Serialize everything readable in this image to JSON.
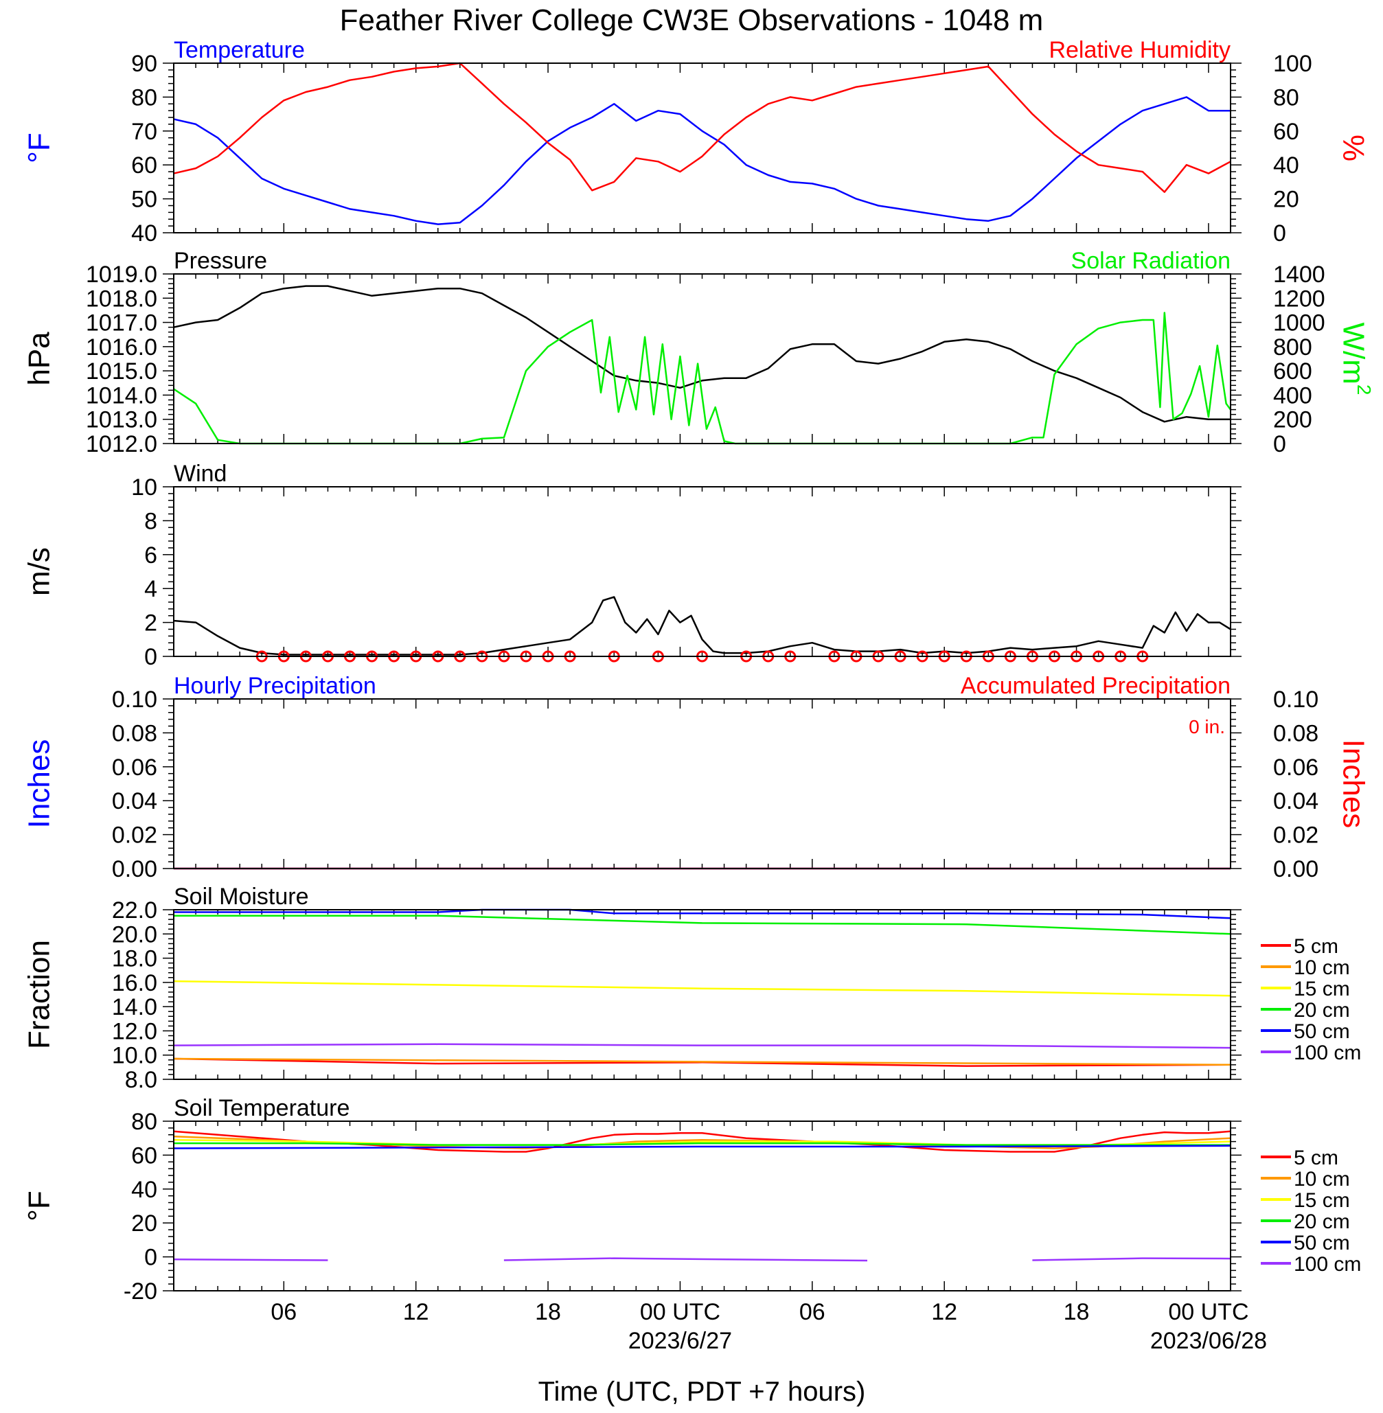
{
  "page": {
    "title": "Feather River College CW3E Observations - 1048 m",
    "xlabel": "Time (UTC, PDT +7 hours)",
    "x_ticks": [
      {
        "hour": 6,
        "label": "06",
        "date": ""
      },
      {
        "hour": 12,
        "label": "12",
        "date": ""
      },
      {
        "hour": 18,
        "label": "18",
        "date": ""
      },
      {
        "hour": 24,
        "label": "00 UTC",
        "date": "2023/6/27"
      },
      {
        "hour": 30,
        "label": "06",
        "date": ""
      },
      {
        "hour": 36,
        "label": "12",
        "date": ""
      },
      {
        "hour": 42,
        "label": "18",
        "date": ""
      },
      {
        "hour": 48,
        "label": "00 UTC",
        "date": "2023/06/28"
      }
    ],
    "x_range_hours": [
      1,
      49
    ]
  },
  "colors": {
    "temperature": "#0000ff",
    "humidity": "#ff0000",
    "pressure": "#000000",
    "solar": "#00ee00",
    "wind_speed": "#000000",
    "wind_barb": "#ff0000",
    "precip_hourly": "#0000ff",
    "precip_accum": "#ff0000",
    "depth_5": "#ff0000",
    "depth_10": "#ff9900",
    "depth_15": "#ffff00",
    "depth_20": "#00ee00",
    "depth_50": "#0000ff",
    "depth_100": "#9933ff"
  },
  "chart_data": [
    {
      "type": "line",
      "title_left": "Temperature",
      "title_right": "Relative Humidity",
      "ylabel_left": "°F",
      "ylabel_right": "%",
      "ylim_left": [
        40,
        90
      ],
      "ylim_right": [
        0,
        100
      ],
      "yticks_left": [
        "40",
        "50",
        "60",
        "70",
        "80",
        "90"
      ],
      "yticks_right": [
        "0",
        "20",
        "40",
        "60",
        "80",
        "100"
      ],
      "series": [
        {
          "name": "Temperature",
          "axis": "left",
          "x": [
            1,
            2,
            3,
            4,
            5,
            6,
            7,
            8,
            9,
            10,
            11,
            12,
            13,
            14,
            15,
            16,
            17,
            18,
            19,
            20,
            21,
            22,
            23,
            24,
            25,
            26,
            27,
            28,
            29,
            30,
            31,
            32,
            33,
            34,
            35,
            36,
            37,
            38,
            39,
            40,
            41,
            42,
            43,
            44,
            45,
            46,
            47,
            48,
            49
          ],
          "values": [
            73.5,
            72,
            68,
            62,
            56,
            53,
            51,
            49,
            47,
            46,
            45,
            43.5,
            42.5,
            43,
            48,
            54,
            61,
            67,
            71,
            74,
            78,
            73,
            76,
            75,
            70,
            66,
            60,
            57,
            55,
            54.5,
            53,
            50,
            48,
            47,
            46,
            45,
            44,
            43.5,
            45,
            50,
            56,
            62,
            67,
            72,
            76,
            78,
            80,
            76,
            76
          ]
        },
        {
          "name": "Relative Humidity",
          "axis": "right",
          "x": [
            1,
            2,
            3,
            4,
            5,
            6,
            7,
            8,
            9,
            10,
            11,
            12,
            13,
            14,
            15,
            16,
            17,
            18,
            19,
            20,
            21,
            22,
            23,
            24,
            25,
            26,
            27,
            28,
            29,
            30,
            31,
            32,
            33,
            34,
            35,
            36,
            37,
            38,
            39,
            40,
            41,
            42,
            43,
            44,
            45,
            46,
            47,
            48,
            49
          ],
          "values": [
            35,
            38,
            45,
            56,
            68,
            78,
            83,
            86,
            90,
            92,
            95,
            97,
            98,
            100,
            88,
            76,
            65,
            53,
            43,
            25,
            30,
            44,
            42,
            36,
            45,
            58,
            68,
            76,
            80,
            78,
            82,
            86,
            88,
            90,
            92,
            94,
            96,
            98,
            84,
            70,
            58,
            48,
            40,
            38,
            36,
            24,
            40,
            35,
            42
          ]
        }
      ]
    },
    {
      "type": "line",
      "title_left": "Pressure",
      "title_right": "Solar Radiation",
      "ylabel_left": "hPa",
      "ylabel_right": "W/m",
      "ylabel_right_sup": "2",
      "ylim_left": [
        1012,
        1019
      ],
      "ylim_right": [
        0,
        1400
      ],
      "yticks_left": [
        "1012.0",
        "1013.0",
        "1014.0",
        "1015.0",
        "1016.0",
        "1017.0",
        "1018.0",
        "1019.0"
      ],
      "yticks_right": [
        "0",
        "200",
        "400",
        "600",
        "800",
        "1000",
        "1200",
        "1400"
      ],
      "series": [
        {
          "name": "Pressure",
          "axis": "left",
          "x": [
            1,
            2,
            3,
            4,
            5,
            6,
            7,
            8,
            9,
            10,
            11,
            12,
            13,
            14,
            15,
            16,
            17,
            18,
            19,
            20,
            21,
            22,
            23,
            24,
            25,
            26,
            27,
            28,
            29,
            30,
            31,
            32,
            33,
            34,
            35,
            36,
            37,
            38,
            39,
            40,
            41,
            42,
            43,
            44,
            45,
            46,
            47,
            48,
            49
          ],
          "values": [
            1016.8,
            1017,
            1017.1,
            1017.6,
            1018.2,
            1018.4,
            1018.5,
            1018.5,
            1018.3,
            1018.1,
            1018.2,
            1018.3,
            1018.4,
            1018.4,
            1018.2,
            1017.7,
            1017.2,
            1016.6,
            1016,
            1015.4,
            1014.8,
            1014.6,
            1014.5,
            1014.3,
            1014.6,
            1014.7,
            1014.7,
            1015.1,
            1015.9,
            1016.1,
            1016.1,
            1015.4,
            1015.3,
            1015.5,
            1015.8,
            1016.2,
            1016.3,
            1016.2,
            1015.9,
            1015.4,
            1015,
            1014.7,
            1014.3,
            1013.9,
            1013.3,
            1012.9,
            1013.1,
            1013,
            1013
          ]
        },
        {
          "name": "Solar Radiation",
          "axis": "right",
          "x": [
            1,
            2,
            3,
            4,
            5,
            6,
            7,
            8,
            9,
            10,
            11,
            12,
            13,
            14,
            15,
            16,
            17,
            18,
            19,
            20,
            20.4,
            20.8,
            21.2,
            21.6,
            22,
            22.4,
            22.8,
            23.2,
            23.6,
            24,
            24.4,
            24.8,
            25.2,
            25.6,
            26,
            26.5,
            27,
            28,
            30,
            32,
            34,
            36,
            38,
            39,
            40,
            40.5,
            41,
            42,
            43,
            44,
            45,
            45.5,
            45.8,
            46,
            46.4,
            46.8,
            47.2,
            47.6,
            48,
            48.4,
            48.8,
            49
          ],
          "values": [
            450,
            330,
            30,
            0,
            0,
            0,
            0,
            0,
            0,
            0,
            0,
            0,
            0,
            0,
            40,
            50,
            600,
            800,
            920,
            1020,
            420,
            880,
            260,
            560,
            280,
            880,
            240,
            820,
            200,
            720,
            150,
            660,
            120,
            300,
            20,
            0,
            0,
            0,
            0,
            0,
            0,
            0,
            0,
            0,
            50,
            50,
            570,
            820,
            950,
            1000,
            1020,
            1020,
            300,
            1080,
            200,
            250,
            410,
            640,
            220,
            810,
            330,
            280
          ]
        }
      ]
    },
    {
      "type": "line",
      "title_left": "Wind",
      "ylabel_left": "m/s",
      "ylim_left": [
        0,
        10
      ],
      "yticks_left": [
        "0",
        "2",
        "4",
        "6",
        "8",
        "10"
      ],
      "series": [
        {
          "name": "Wind",
          "axis": "left",
          "x": [
            1,
            2,
            3,
            4,
            5,
            6,
            7,
            8,
            9,
            10,
            11,
            12,
            13,
            14,
            15,
            16,
            17,
            18,
            19,
            20,
            20.5,
            21,
            21.5,
            22,
            22.5,
            23,
            23.5,
            24,
            24.5,
            25,
            25.5,
            26,
            27,
            28,
            29,
            30,
            31,
            32,
            33,
            34,
            35,
            36,
            37,
            38,
            39,
            40,
            41,
            42,
            43,
            44,
            45,
            45.5,
            46,
            46.5,
            47,
            47.5,
            48,
            48.5,
            49
          ],
          "values": [
            2.1,
            2,
            1.2,
            0.5,
            0.2,
            0.1,
            0.1,
            0.1,
            0.1,
            0.1,
            0.1,
            0.1,
            0.1,
            0.1,
            0.2,
            0.4,
            0.6,
            0.8,
            1.0,
            2.0,
            3.3,
            3.5,
            2.0,
            1.4,
            2.2,
            1.3,
            2.7,
            2.0,
            2.4,
            1.0,
            0.3,
            0.2,
            0.2,
            0.3,
            0.6,
            0.8,
            0.4,
            0.3,
            0.3,
            0.4,
            0.2,
            0.3,
            0.2,
            0.3,
            0.5,
            0.4,
            0.5,
            0.6,
            0.9,
            0.7,
            0.5,
            1.8,
            1.4,
            2.6,
            1.5,
            2.5,
            2.0,
            2.0,
            1.6
          ]
        }
      ],
      "barb_hours": [
        5,
        6,
        7,
        8,
        9,
        10,
        11,
        12,
        13,
        14,
        15,
        16,
        17,
        18,
        19,
        21,
        23,
        25,
        27,
        28,
        29,
        31,
        32,
        33,
        34,
        35,
        36,
        37,
        38,
        39,
        40,
        41,
        42,
        43,
        44,
        45
      ]
    },
    {
      "type": "line",
      "title_left": "Hourly Precipitation",
      "title_right": "Accumulated Precipitation",
      "annotation": "0 in.",
      "ylabel_left": "Inches",
      "ylabel_right": "Inches",
      "ylim_left": [
        0,
        0.1
      ],
      "ylim_right": [
        0,
        0.1
      ],
      "yticks_left": [
        "0.00",
        "0.02",
        "0.04",
        "0.06",
        "0.08",
        "0.10"
      ],
      "yticks_right": [
        "0.00",
        "0.02",
        "0.04",
        "0.06",
        "0.08",
        "0.10"
      ],
      "series": [
        {
          "name": "Hourly Precipitation",
          "axis": "left",
          "x": [
            1,
            49
          ],
          "values": [
            0,
            0
          ]
        },
        {
          "name": "Accumulated Precipitation",
          "axis": "right",
          "x": [
            1,
            49
          ],
          "values": [
            0,
            0
          ]
        }
      ]
    },
    {
      "type": "line",
      "title_left": "Soil Moisture",
      "ylabel_left": "Fraction",
      "ylim_left": [
        8,
        22
      ],
      "yticks_left": [
        "8.0",
        "10.0",
        "12.0",
        "14.0",
        "16.0",
        "18.0",
        "20.0",
        "22.0"
      ],
      "legend": [
        "5 cm",
        "10 cm",
        "15 cm",
        "20 cm",
        "50 cm",
        "100 cm"
      ],
      "series": [
        {
          "name": "5 cm",
          "x": [
            1,
            13,
            25,
            37,
            49
          ],
          "values": [
            9.7,
            9.3,
            9.4,
            9.1,
            9.2
          ]
        },
        {
          "name": "10 cm",
          "x": [
            1,
            49
          ],
          "values": [
            9.7,
            9.2
          ]
        },
        {
          "name": "15 cm",
          "x": [
            1,
            13,
            25,
            37,
            49
          ],
          "values": [
            16.1,
            15.8,
            15.5,
            15.3,
            14.9
          ]
        },
        {
          "name": "20 cm",
          "x": [
            1,
            13,
            21,
            25,
            37,
            49
          ],
          "values": [
            21.5,
            21.5,
            21.1,
            20.9,
            20.8,
            20.0
          ]
        },
        {
          "name": "50 cm",
          "x": [
            1,
            13,
            15,
            19,
            21,
            37,
            45,
            49
          ],
          "values": [
            21.8,
            21.8,
            22.0,
            22.0,
            21.7,
            21.7,
            21.6,
            21.3
          ]
        },
        {
          "name": "100 cm",
          "x": [
            1,
            13,
            25,
            37,
            49
          ],
          "values": [
            10.8,
            10.9,
            10.8,
            10.8,
            10.6
          ]
        }
      ]
    },
    {
      "type": "line",
      "title_left": "Soil Temperature",
      "ylabel_left": "°F",
      "ylim_left": [
        -20,
        80
      ],
      "yticks_left": [
        "-20",
        "0",
        "20",
        "40",
        "60",
        "80"
      ],
      "legend": [
        "5 cm",
        "10 cm",
        "15 cm",
        "20 cm",
        "50 cm",
        "100 cm"
      ],
      "series": [
        {
          "name": "5 cm",
          "x": [
            1,
            4,
            7,
            10,
            13,
            16,
            17,
            18,
            19,
            20,
            21,
            22,
            23,
            24,
            25,
            27,
            30,
            33,
            36,
            39,
            41,
            42,
            43,
            44,
            45,
            46,
            47,
            48,
            49
          ],
          "values": [
            74,
            71,
            68,
            66,
            63,
            62,
            62,
            64,
            67,
            70,
            72,
            72.5,
            72.5,
            73,
            73,
            70,
            68,
            66,
            63,
            62,
            62,
            64,
            67,
            70,
            72,
            73.5,
            73,
            73,
            74
          ]
        },
        {
          "name": "10 cm",
          "x": [
            1,
            7,
            13,
            17,
            19,
            22,
            25,
            30,
            35,
            41,
            43,
            46,
            49
          ],
          "values": [
            71,
            68,
            65,
            64,
            65,
            68,
            69,
            68,
            66,
            64,
            65,
            68,
            70
          ]
        },
        {
          "name": "15 cm",
          "x": [
            1,
            7,
            13,
            19,
            25,
            31,
            37,
            43,
            49
          ],
          "values": [
            69,
            68,
            66,
            66,
            68,
            68,
            66,
            66,
            68
          ]
        },
        {
          "name": "20 cm",
          "x": [
            1,
            7,
            13,
            19,
            25,
            31,
            37,
            43,
            49
          ],
          "values": [
            67,
            67,
            66,
            66,
            67,
            67,
            66,
            66,
            66
          ]
        },
        {
          "name": "50 cm",
          "x": [
            1,
            13,
            25,
            37,
            49
          ],
          "values": [
            64,
            64.5,
            65,
            65,
            65.5
          ]
        },
        {
          "name": "100 cm",
          "x": [
            1,
            8
          ],
          "values": [
            -1.5,
            -2
          ],
          "x2": [
            16,
            21,
            24,
            32.5
          ],
          "values2": [
            -2,
            -0.8,
            -1.2,
            -2.2
          ],
          "x3": [
            40,
            45,
            49
          ],
          "values3": [
            -2,
            -0.8,
            -1
          ]
        }
      ]
    }
  ]
}
